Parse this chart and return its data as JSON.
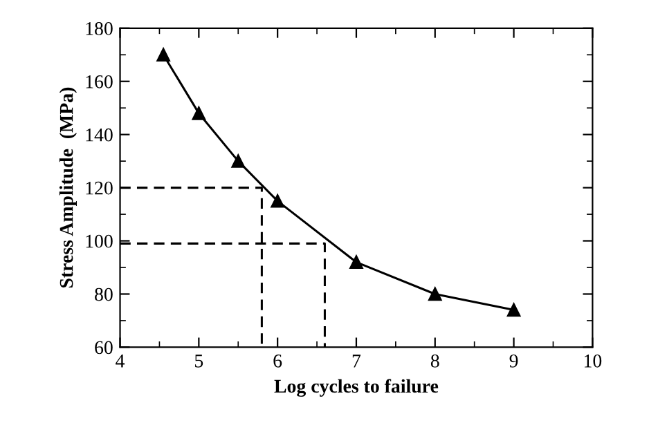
{
  "chart_data": {
    "type": "line",
    "xlabel": "Log cycles to failure",
    "ylabel": "Stress Amplitude  (MPa)",
    "xlim": [
      4,
      10
    ],
    "xticks": [
      4,
      5,
      6,
      7,
      8,
      9,
      10
    ],
    "ylim": [
      60,
      180
    ],
    "yticks": [
      60,
      80,
      100,
      120,
      140,
      160,
      180
    ],
    "grid": false,
    "series": [
      {
        "color": "#000000",
        "x": [
          4.55,
          5,
          5.5,
          6,
          7,
          8,
          9
        ],
        "values": [
          170,
          148,
          130,
          115,
          92,
          80,
          74
        ],
        "marker": "triangle",
        "line_style": "solid"
      },
      {
        "color": "#000000",
        "x": [
          4,
          5.8,
          5.8
        ],
        "values": [
          120,
          120,
          60
        ],
        "marker": "none",
        "line_style": "dashed"
      },
      {
        "color": "#000000",
        "x": [
          4,
          6.6,
          6.6
        ],
        "values": [
          99,
          99,
          60
        ],
        "marker": "none",
        "line_style": "dashed"
      }
    ]
  }
}
